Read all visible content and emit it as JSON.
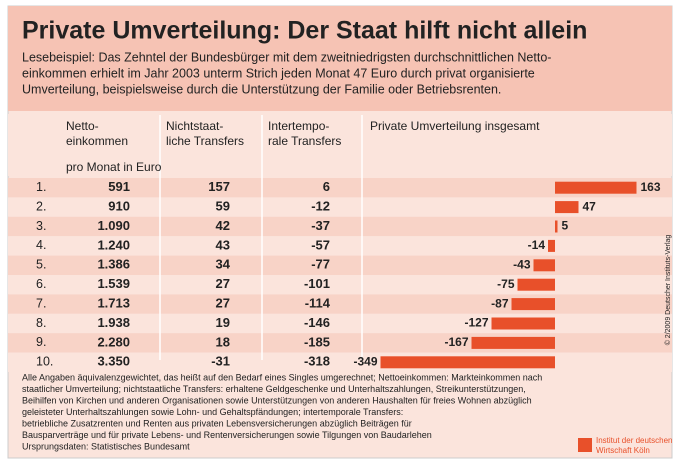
{
  "title": "Private Umverteilung: Der Staat hilft nicht allein",
  "intro": [
    "Lesebeispiel: Das Zehntel der Bundesbürger mit dem zweitniedrigsten durchschnittlichen Netto-",
    "einkommen erhielt im Jahr 2003 unterm Strich jeden Monat 47 Euro durch privat organisierte",
    "Umverteilung, beispielsweise durch die Unterstützung der Familie oder Betriebsrenten."
  ],
  "headers": [
    [
      "Netto-",
      "einkommen"
    ],
    [
      "Nichtstaat-",
      "liche Transfers"
    ],
    [
      "Intertempo-",
      "rale Transfers"
    ]
  ],
  "unit_note": "pro Monat in Euro",
  "table": {
    "rows": [
      [
        "591",
        "157",
        "6"
      ],
      [
        "910",
        "59",
        "-12"
      ],
      [
        "1.090",
        "42",
        "-37"
      ],
      [
        "1.240",
        "43",
        "-57"
      ],
      [
        "1.386",
        "34",
        "-77"
      ],
      [
        "1.539",
        "27",
        "-101"
      ],
      [
        "1.713",
        "27",
        "-114"
      ],
      [
        "1.938",
        "19",
        "-146"
      ],
      [
        "2.280",
        "18",
        "-185"
      ],
      [
        "3.350",
        "-31",
        "-318"
      ]
    ]
  },
  "chart_data": {
    "type": "bar",
    "orientation": "horizontal",
    "title": "Private Umverteilung insgesamt",
    "categories": [
      "1.",
      "2.",
      "3.",
      "4.",
      "5.",
      "6.",
      "7.",
      "8.",
      "9.",
      "10."
    ],
    "values": [
      163,
      47,
      5,
      -14,
      -43,
      -75,
      -87,
      -127,
      -167,
      -349
    ],
    "color": "#e8502a"
  },
  "footnote": [
    "Alle Angaben äquivalenzgewichtet, das heißt auf den Bedarf eines Singles umgerechnet; Nettoeinkommen: Markteinkommen nach",
    "staatlicher Umverteilung; nichtstaatliche Transfers: erhaltene Geldgeschenke und Unterhaltszahlungen, Streikunterstützungen,",
    "Beihilfen von Kirchen und anderen Organisationen sowie Unterstützungen von anderen Haushalten für freies Wohnen abzüglich",
    "geleisteter Unterhaltszahlungen sowie Lohn- und Gehaltspfändungen; intertemporale Transfers:",
    "betriebliche Zusatzrenten und Renten aus privaten Lebensversicherungen abzüglich Beiträgen für",
    "Bausparverträge und für private Lebens- und Rentenversicherungen sowie Tilgungen von Baudarlehen",
    "Ursprungsdaten: Statistisches Bundesamt"
  ],
  "copyright": "© 2/2009 Deutscher Instituts-Verlag",
  "logo": [
    "Institut der deutschen",
    "Wirtschaft Köln"
  ]
}
